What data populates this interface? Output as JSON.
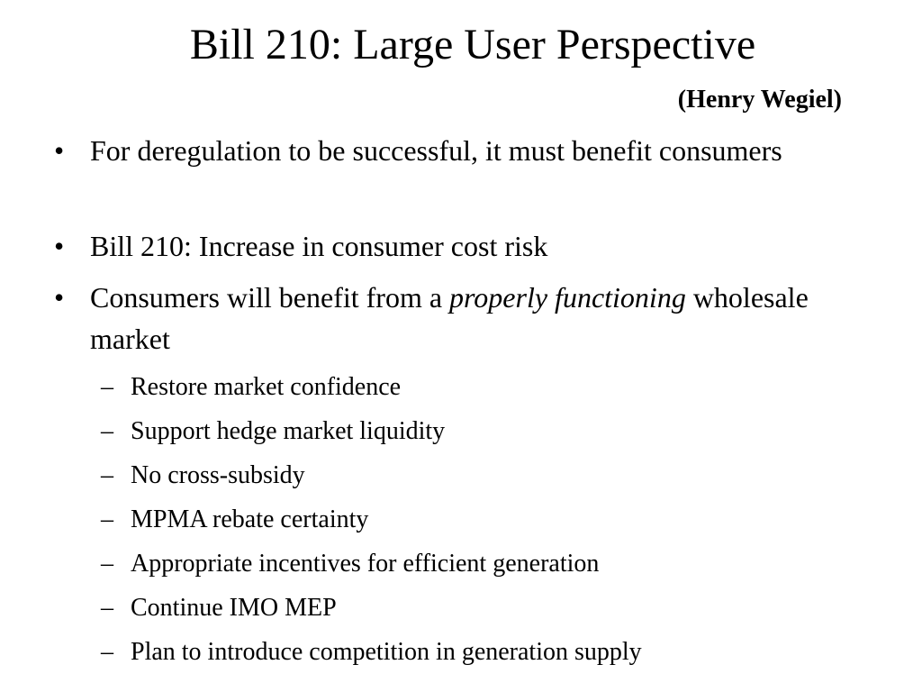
{
  "slide": {
    "title": "Bill 210: Large User Perspective",
    "subtitle": "(Henry Wegiel)",
    "bullet_marker": "•",
    "sub_marker": "–",
    "bullets": [
      {
        "text": "For deregulation to be successful, it must benefit consumers"
      },
      {
        "text": "Bill 210: Increase in consumer cost risk"
      },
      {
        "text_before": "Consumers will benefit from a ",
        "text_italic": "properly functioning",
        "text_after": " wholesale market"
      }
    ],
    "sub_bullets": [
      "Restore market confidence",
      "Support hedge market liquidity",
      "No cross-subsidy",
      "MPMA rebate certainty",
      "Appropriate incentives for efficient generation",
      "Continue IMO MEP",
      "Plan to introduce competition in generation supply"
    ]
  }
}
